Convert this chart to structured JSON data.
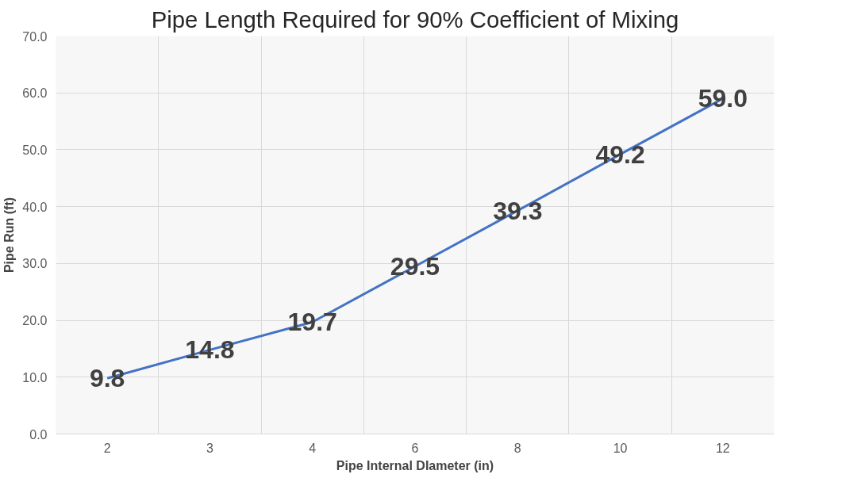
{
  "chart_data": {
    "type": "line",
    "title": "Pipe Length Required for 90% Coefficient of Mixing",
    "xlabel": "Pipe Internal DIameter (in)",
    "ylabel": "Pipe Run (ft)",
    "categories": [
      "2",
      "3",
      "4",
      "6",
      "8",
      "10",
      "12"
    ],
    "series": [
      {
        "color": "#4472c4",
        "values": [
          9.8,
          14.8,
          19.7,
          29.5,
          39.3,
          49.2,
          59.0
        ],
        "value_labels": [
          "9.8",
          "14.8",
          "19.7",
          "29.5",
          "39.3",
          "49.2",
          "59.0"
        ]
      }
    ],
    "ylim": [
      0,
      70
    ],
    "yticks": [
      {
        "value": 0,
        "label": "0.0"
      },
      {
        "value": 10,
        "label": "10.0"
      },
      {
        "value": 20,
        "label": "20.0"
      },
      {
        "value": 30,
        "label": "30.0"
      },
      {
        "value": 40,
        "label": "40.0"
      },
      {
        "value": 50,
        "label": "50.0"
      },
      {
        "value": 60,
        "label": "60.0"
      },
      {
        "value": 70,
        "label": "70.0"
      }
    ],
    "grid": true,
    "marker": "none",
    "line_style": "solid"
  }
}
